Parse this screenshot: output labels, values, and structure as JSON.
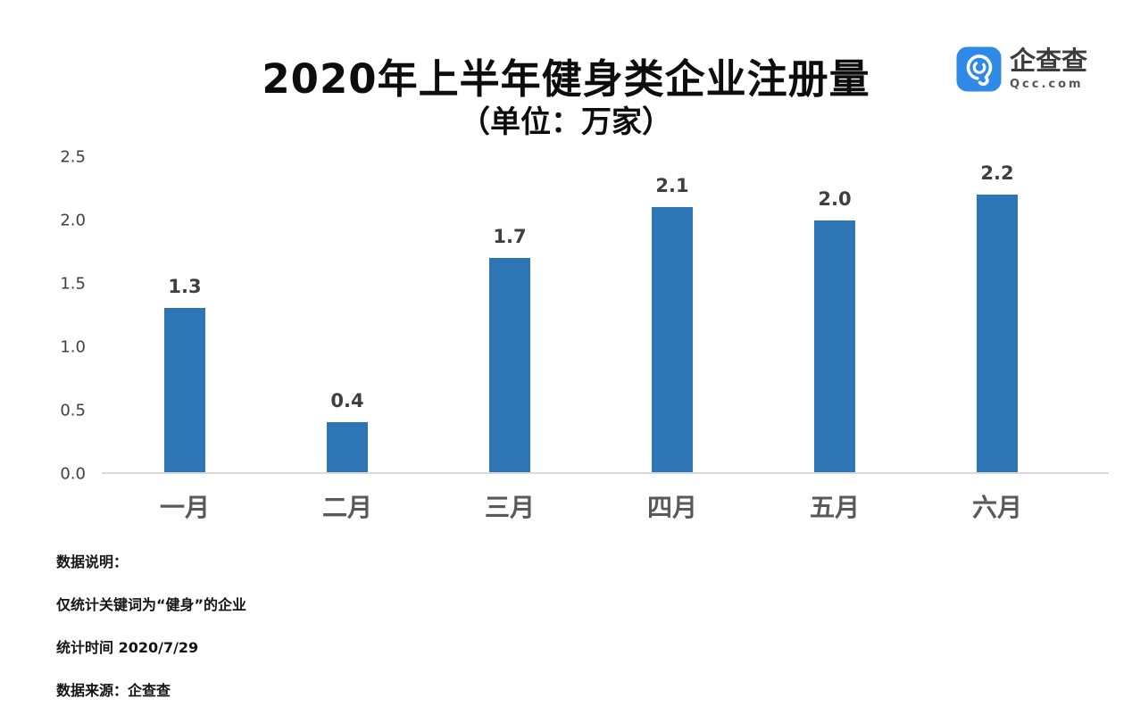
{
  "header": {
    "logo": {
      "name": "企查查",
      "domain": "Qcc.com",
      "icon": "qcc-magnifier-icon",
      "icon_color": "#2e8ae6"
    }
  },
  "chart_data": {
    "type": "bar",
    "title": "2020年上半年健身类企业注册量",
    "subtitle": "（单位：万家）",
    "categories": [
      "一月",
      "二月",
      "三月",
      "四月",
      "五月",
      "六月"
    ],
    "values": [
      1.3,
      0.4,
      1.7,
      2.1,
      2.0,
      2.2
    ],
    "value_labels": [
      "1.3",
      "0.4",
      "1.7",
      "2.1",
      "2.0",
      "2.2"
    ],
    "ylabel": "",
    "xlabel": "",
    "ylim": [
      0,
      2.5
    ],
    "yticks": [
      "0.0",
      "0.5",
      "1.0",
      "1.5",
      "2.0",
      "2.5"
    ],
    "grid": false,
    "legend": false,
    "bar_color": "#2e75b5",
    "axis_line_color": "#d9d9d9"
  },
  "notes": {
    "lines": [
      "数据说明：",
      "仅统计关键词为“健身”的企业",
      "统计时间 2020/7/29",
      "数据来源：企查查"
    ]
  }
}
